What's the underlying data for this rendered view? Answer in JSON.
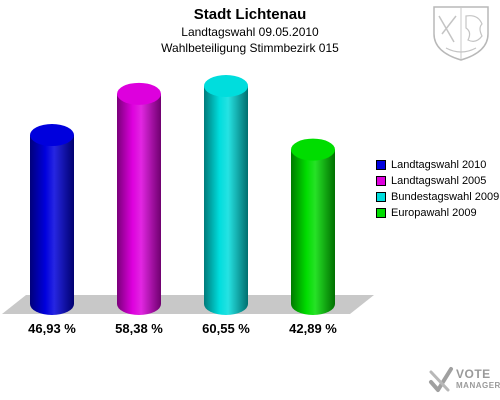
{
  "header": {
    "title": "Stadt Lichtenau",
    "subtitle1": "Landtagswahl 09.05.2010",
    "subtitle2": "Wahlbeteiligung Stimmbezirk 015"
  },
  "chart_data": {
    "type": "bar",
    "title": "Stadt Lichtenau",
    "subtitle": "Landtagswahl 09.05.2010 / Wahlbeteiligung Stimmbezirk 015",
    "xlabel": "",
    "ylabel": "",
    "categories": [
      "Landtagswahl 2010",
      "Landtagswahl 2005",
      "Bundestagswahl 2009",
      "Europawahl 2009"
    ],
    "values": [
      46.93,
      58.38,
      60.55,
      42.89
    ],
    "value_labels": [
      "46,93 %",
      "58,38 %",
      "60,55 %",
      "42,89 %"
    ],
    "colors": [
      "#0000dd",
      "#dd00dd",
      "#00dddd",
      "#00dd00"
    ],
    "unit": "%",
    "ylim": [
      0,
      70
    ],
    "grid": false,
    "legend": "right",
    "style": "3d-cylinder"
  },
  "legend": {
    "items": [
      {
        "label": "Landtagswahl 2010",
        "color": "#0000dd"
      },
      {
        "label": "Landtagswahl 2005",
        "color": "#dd00dd"
      },
      {
        "label": "Bundestagswahl 2009",
        "color": "#00dddd"
      },
      {
        "label": "Europawahl 2009",
        "color": "#00dd00"
      }
    ]
  },
  "branding": {
    "logo_line1": "VOTE",
    "logo_line2": "MANAGER",
    "crest_icon": "coat-of-arms-icon",
    "logo_icon": "vote-manager-check-icon"
  }
}
